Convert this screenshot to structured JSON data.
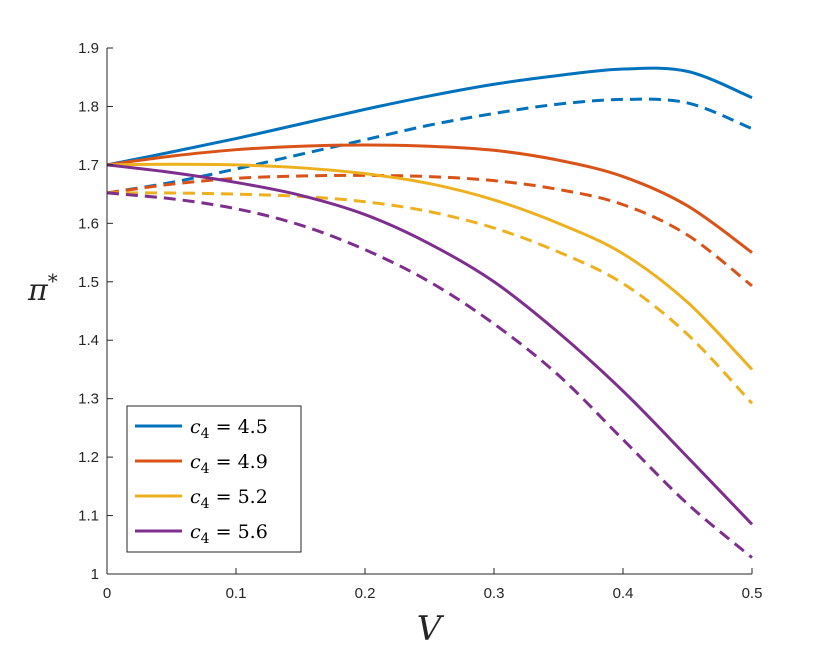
{
  "chart_data": {
    "type": "line",
    "xlabel": "V",
    "ylabel": "π*",
    "xlim": [
      0,
      0.5
    ],
    "ylim": [
      1,
      1.9
    ],
    "x_ticks": [
      "0",
      "0.1",
      "0.2",
      "0.3",
      "0.4",
      "0.5"
    ],
    "y_ticks": [
      "1",
      "1.1",
      "1.2",
      "1.3",
      "1.4",
      "1.5",
      "1.6",
      "1.7",
      "1.8",
      "1.9"
    ],
    "grid": false,
    "legend_position": "bottom-left",
    "x": [
      0,
      0.05,
      0.1,
      0.15,
      0.2,
      0.25,
      0.3,
      0.35,
      0.4,
      0.45,
      0.5
    ],
    "series": [
      {
        "name": "c_4 = 4.5",
        "label_sub": "4",
        "label_val": "4.5",
        "color": "#0072BD",
        "dash": false,
        "values": [
          1.7,
          1.722,
          1.745,
          1.77,
          1.795,
          1.818,
          1.838,
          1.853,
          1.864,
          1.86,
          1.815
        ]
      },
      {
        "name": "",
        "color": "#0072BD",
        "dash": true,
        "values": [
          1.652,
          1.67,
          1.693,
          1.718,
          1.743,
          1.768,
          1.788,
          1.804,
          1.812,
          1.806,
          1.762
        ]
      },
      {
        "name": "c_4 = 4.9",
        "label_sub": "4",
        "label_val": "4.9",
        "color": "#D95319",
        "dash": false,
        "values": [
          1.7,
          1.715,
          1.726,
          1.732,
          1.734,
          1.732,
          1.725,
          1.708,
          1.68,
          1.63,
          1.55
        ]
      },
      {
        "name": "",
        "color": "#D95319",
        "dash": true,
        "values": [
          1.652,
          1.667,
          1.677,
          1.681,
          1.682,
          1.68,
          1.673,
          1.658,
          1.632,
          1.58,
          1.493
        ]
      },
      {
        "name": "c_4 = 5.2",
        "label_sub": "4",
        "label_val": "5.2",
        "color": "#EDB120",
        "dash": false,
        "values": [
          1.7,
          1.701,
          1.7,
          1.695,
          1.685,
          1.668,
          1.64,
          1.6,
          1.548,
          1.465,
          1.35
        ]
      },
      {
        "name": "",
        "color": "#EDB120",
        "dash": true,
        "values": [
          1.652,
          1.652,
          1.65,
          1.646,
          1.637,
          1.62,
          1.592,
          1.551,
          1.497,
          1.41,
          1.292
        ]
      },
      {
        "name": "c_4 = 5.6",
        "label_sub": "4",
        "label_val": "5.6",
        "color": "#7E2F8E",
        "dash": false,
        "values": [
          1.7,
          1.687,
          1.67,
          1.648,
          1.615,
          1.565,
          1.5,
          1.413,
          1.313,
          1.2,
          1.085
        ]
      },
      {
        "name": "",
        "color": "#7E2F8E",
        "dash": true,
        "values": [
          1.652,
          1.642,
          1.625,
          1.597,
          1.555,
          1.5,
          1.428,
          1.34,
          1.23,
          1.12,
          1.028
        ]
      }
    ]
  }
}
